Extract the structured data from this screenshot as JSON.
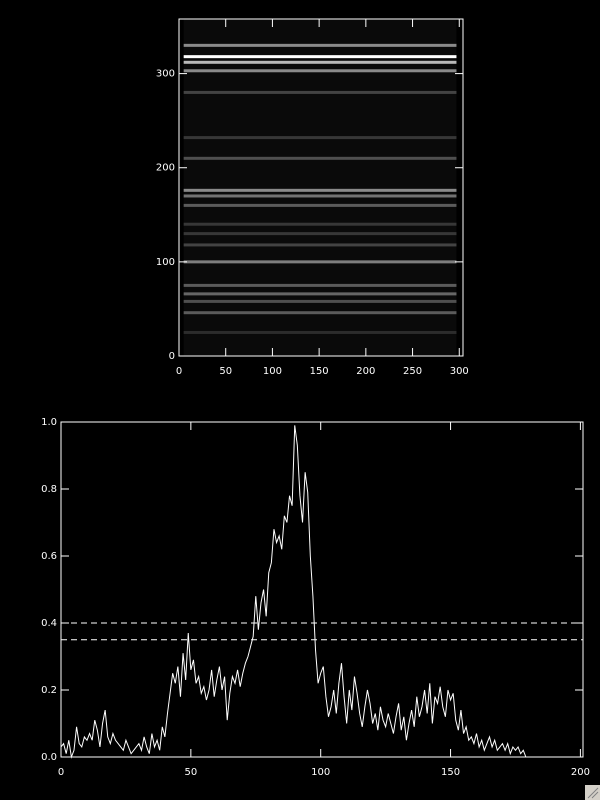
{
  "chart_data": [
    {
      "type": "image",
      "xlim": [
        0,
        304
      ],
      "ylim": [
        0,
        358
      ],
      "xticks": [
        0,
        50,
        100,
        150,
        200,
        250,
        300
      ],
      "yticks": [
        0,
        100,
        200,
        300
      ],
      "image_x": [
        5,
        297
      ],
      "rows": {
        "y": [
          330,
          318,
          312,
          303,
          280,
          232,
          210,
          176,
          170,
          160,
          140,
          130,
          118,
          100,
          75,
          66,
          58,
          46,
          25
        ],
        "intensity": [
          0.5,
          1.0,
          0.7,
          0.5,
          0.2,
          0.15,
          0.25,
          0.5,
          0.4,
          0.3,
          0.15,
          0.15,
          0.2,
          0.45,
          0.3,
          0.35,
          0.25,
          0.3,
          0.1
        ]
      }
    },
    {
      "type": "line",
      "xlim": [
        0,
        201
      ],
      "ylim": [
        0,
        1
      ],
      "xticks": [
        0,
        50,
        100,
        150,
        200
      ],
      "yticks": [
        {
          "value": 0,
          "label": "0.0"
        },
        {
          "value": 0.2,
          "label": "0.2"
        },
        {
          "value": 0.4,
          "label": "0.4"
        },
        {
          "value": 0.6,
          "label": "0.6"
        },
        {
          "value": 0.8,
          "label": "0.8"
        },
        {
          "value": 1,
          "label": "1.0"
        }
      ],
      "color": "#ffffff",
      "hlines": [
        0.4,
        0.35
      ],
      "x": [
        0,
        1,
        2,
        3,
        4,
        5,
        6,
        7,
        8,
        9,
        10,
        11,
        12,
        13,
        14,
        15,
        16,
        17,
        18,
        19,
        20,
        21,
        22,
        23,
        24,
        25,
        26,
        27,
        28,
        29,
        30,
        31,
        32,
        33,
        34,
        35,
        36,
        37,
        38,
        39,
        40,
        41,
        42,
        43,
        44,
        45,
        46,
        47,
        48,
        49,
        50,
        51,
        52,
        53,
        54,
        55,
        56,
        57,
        58,
        59,
        60,
        61,
        62,
        63,
        64,
        65,
        66,
        67,
        68,
        69,
        70,
        71,
        72,
        73,
        74,
        75,
        76,
        77,
        78,
        79,
        80,
        81,
        82,
        83,
        84,
        85,
        86,
        87,
        88,
        89,
        90,
        91,
        92,
        93,
        94,
        95,
        96,
        97,
        98,
        99,
        100,
        101,
        102,
        103,
        104,
        105,
        106,
        107,
        108,
        109,
        110,
        111,
        112,
        113,
        114,
        115,
        116,
        117,
        118,
        119,
        120,
        121,
        122,
        123,
        124,
        125,
        126,
        127,
        128,
        129,
        130,
        131,
        132,
        133,
        134,
        135,
        136,
        137,
        138,
        139,
        140,
        141,
        142,
        143,
        144,
        145,
        146,
        147,
        148,
        149,
        150,
        151,
        152,
        153,
        154,
        155,
        156,
        157,
        158,
        159,
        160,
        161,
        162,
        163,
        164,
        165,
        166,
        167,
        168,
        169,
        170,
        171,
        172,
        173,
        174,
        175,
        176,
        177,
        178,
        179
      ],
      "values": [
        0.03,
        0.04,
        0.01,
        0.05,
        0,
        0.02,
        0.09,
        0.04,
        0.03,
        0.06,
        0.05,
        0.07,
        0.05,
        0.11,
        0.08,
        0.03,
        0.1,
        0.14,
        0.06,
        0.04,
        0.07,
        0.05,
        0.04,
        0.03,
        0.02,
        0.05,
        0.03,
        0.01,
        0.02,
        0.03,
        0.04,
        0.02,
        0.06,
        0.03,
        0.01,
        0.07,
        0.03,
        0.05,
        0.02,
        0.09,
        0.06,
        0.13,
        0.19,
        0.25,
        0.22,
        0.27,
        0.18,
        0.31,
        0.23,
        0.37,
        0.26,
        0.29,
        0.22,
        0.24,
        0.19,
        0.21,
        0.17,
        0.2,
        0.26,
        0.18,
        0.23,
        0.27,
        0.2,
        0.24,
        0.11,
        0.19,
        0.24,
        0.22,
        0.26,
        0.21,
        0.25,
        0.28,
        0.3,
        0.33,
        0.36,
        0.48,
        0.38,
        0.46,
        0.5,
        0.42,
        0.55,
        0.58,
        0.68,
        0.64,
        0.66,
        0.62,
        0.72,
        0.7,
        0.78,
        0.75,
        0.99,
        0.93,
        0.78,
        0.7,
        0.85,
        0.79,
        0.6,
        0.48,
        0.32,
        0.22,
        0.25,
        0.27,
        0.18,
        0.12,
        0.15,
        0.2,
        0.13,
        0.22,
        0.28,
        0.18,
        0.1,
        0.2,
        0.14,
        0.24,
        0.19,
        0.13,
        0.09,
        0.15,
        0.2,
        0.16,
        0.1,
        0.13,
        0.08,
        0.15,
        0.11,
        0.09,
        0.13,
        0.1,
        0.07,
        0.12,
        0.16,
        0.08,
        0.12,
        0.05,
        0.1,
        0.14,
        0.09,
        0.18,
        0.12,
        0.15,
        0.2,
        0.13,
        0.22,
        0.1,
        0.18,
        0.16,
        0.21,
        0.15,
        0.12,
        0.2,
        0.17,
        0.19,
        0.11,
        0.08,
        0.14,
        0.07,
        0.09,
        0.05,
        0.06,
        0.04,
        0.07,
        0.03,
        0.05,
        0.02,
        0.04,
        0.06,
        0.03,
        0.05,
        0.02,
        0.03,
        0.04,
        0.02,
        0.04,
        0.01,
        0.03,
        0.02,
        0.03,
        0.01,
        0.02,
        0
      ]
    }
  ]
}
